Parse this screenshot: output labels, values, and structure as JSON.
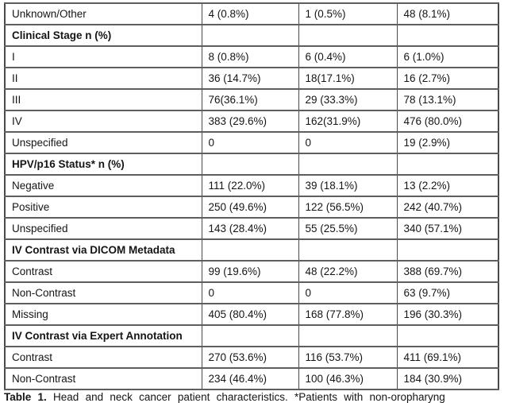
{
  "table": {
    "rows": [
      {
        "label": "Unknown/Other",
        "c1": "4 (0.8%)",
        "c2": "1 (0.5%)",
        "c3": "48 (8.1%)",
        "section": false
      },
      {
        "label": "Clinical Stage n (%)",
        "c1": "",
        "c2": "",
        "c3": "",
        "section": true
      },
      {
        "label": "I",
        "c1": "8 (0.8%)",
        "c2": "6 (0.4%)",
        "c3": "6 (1.0%)",
        "section": false
      },
      {
        "label": "II",
        "c1": "36 (14.7%)",
        "c2": "18(17.1%)",
        "c3": "16 (2.7%)",
        "section": false
      },
      {
        "label": "III",
        "c1": "76(36.1%)",
        "c2": "29 (33.3%)",
        "c3": "78 (13.1%)",
        "section": false
      },
      {
        "label": "IV",
        "c1": "383 (29.6%)",
        "c2": "162(31.9%)",
        "c3": "476 (80.0%)",
        "section": false
      },
      {
        "label": "Unspecified",
        "c1": "0",
        "c2": "0",
        "c3": "19 (2.9%)",
        "section": false
      },
      {
        "label": "HPV/p16 Status* n (%)",
        "c1": "",
        "c2": "",
        "c3": "",
        "section": true
      },
      {
        "label": "Negative",
        "c1": "111 (22.0%)",
        "c2": "39 (18.1%)",
        "c3": "13 (2.2%)",
        "section": false
      },
      {
        "label": "Positive",
        "c1": "250 (49.6%)",
        "c2": "122 (56.5%)",
        "c3": "242 (40.7%)",
        "section": false
      },
      {
        "label": "Unspecified",
        "c1": "143 (28.4%)",
        "c2": "55 (25.5%)",
        "c3": "340 (57.1%)",
        "section": false
      },
      {
        "label": "IV Contrast via DICOM Metadata",
        "c1": "",
        "c2": "",
        "c3": "",
        "section": true
      },
      {
        "label": "Contrast",
        "c1": "99 (19.6%)",
        "c2": "48 (22.2%)",
        "c3": "388 (69.7%)",
        "section": false
      },
      {
        "label": "Non-Contrast",
        "c1": "0",
        "c2": "0",
        "c3": "63 (9.7%)",
        "section": false
      },
      {
        "label": "Missing",
        "c1": "405 (80.4%)",
        "c2": "168 (77.8%)",
        "c3": "196 (30.3%)",
        "section": false
      },
      {
        "label": "IV Contrast via Expert Annotation",
        "c1": "",
        "c2": "",
        "c3": "",
        "section": true
      },
      {
        "label": "Contrast",
        "c1": "270 (53.6%)",
        "c2": "116 (53.7%)",
        "c3": "411 (69.1%)",
        "section": false
      },
      {
        "label": "Non-Contrast",
        "c1": "234 (46.4%)",
        "c2": "100 (46.3%)",
        "c3": "184 (30.9%)",
        "section": false
      }
    ]
  },
  "caption": {
    "label": "Table 1.",
    "text": "Head and neck cancer patient characteristics. *Patients with non-oropharyng"
  },
  "colors": {
    "border_horizontal": "#5e5e5e",
    "border_vertical": "#4a4a4a",
    "text": "#151515",
    "background": "#ffffff"
  }
}
